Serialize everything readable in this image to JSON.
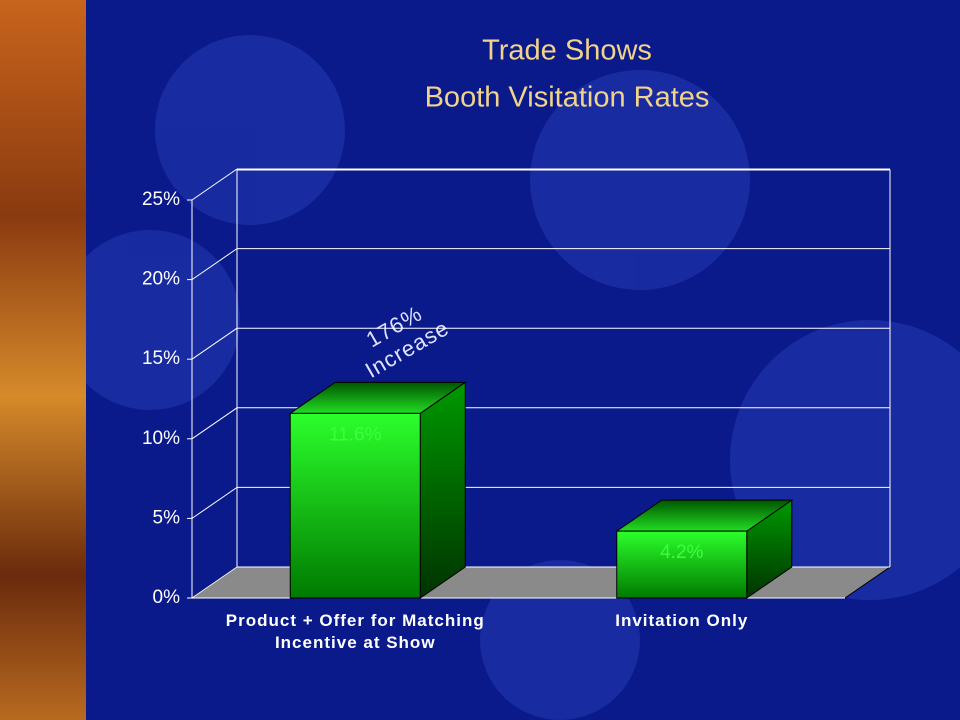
{
  "chart_data": {
    "type": "bar3d",
    "title": "Trade Shows",
    "subtitle": "Booth Visitation Rates",
    "annotation": [
      "176%",
      "Increase"
    ],
    "categories": [
      "Product + Offer for Matching Incentive at Show",
      "Invitation Only"
    ],
    "values": [
      11.6,
      4.2
    ],
    "value_labels": [
      "11.6%",
      "4.2%"
    ],
    "color": "#00cc00",
    "ylim": [
      0,
      25
    ],
    "yticks": [
      {
        "value": 0,
        "label": "0%"
      },
      {
        "value": 5,
        "label": "5%"
      },
      {
        "value": 10,
        "label": "10%"
      },
      {
        "value": 15,
        "label": "15%"
      },
      {
        "value": 20,
        "label": "20%"
      },
      {
        "value": 25,
        "label": "25%"
      }
    ],
    "grid": true
  }
}
